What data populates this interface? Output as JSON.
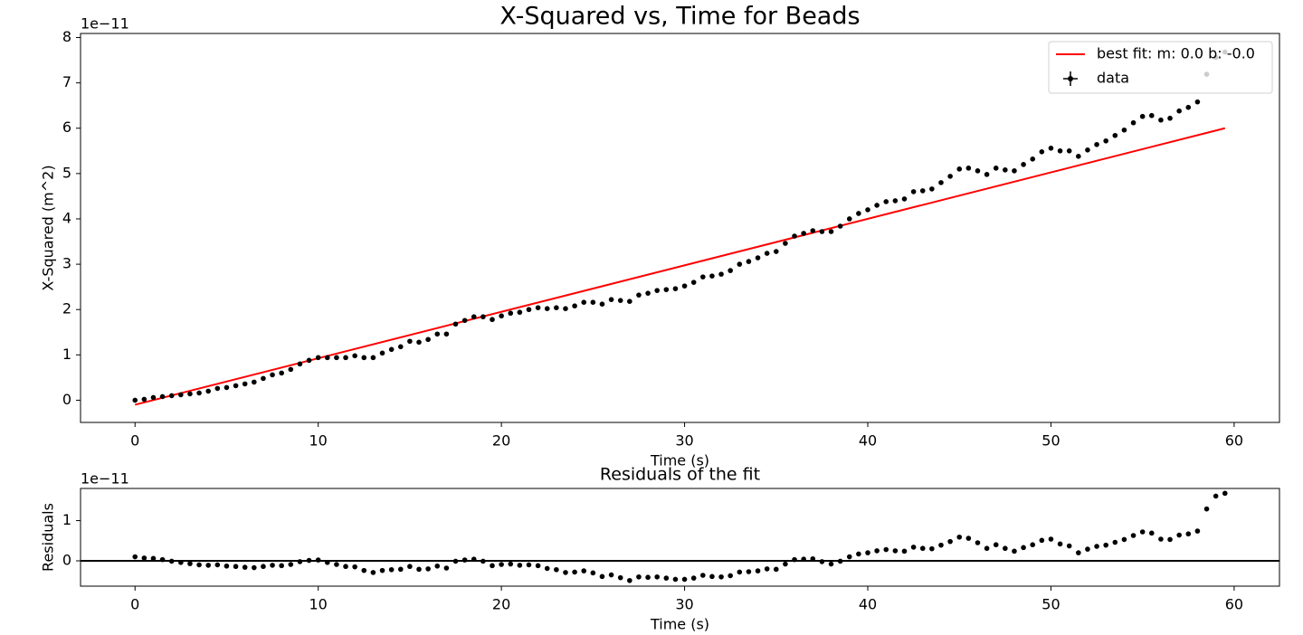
{
  "chart_data": [
    {
      "type": "scatter",
      "title": "X-Squared vs, Time for Beads",
      "xlabel": "Time (s)",
      "ylabel": "X-Squared (m^2)",
      "y_offset_label": "1e−11",
      "xlim": [
        -2.975,
        62.475
      ],
      "xticks": [
        0,
        10,
        20,
        30,
        40,
        50,
        60
      ],
      "ylim": [
        -0.49,
        8.09
      ],
      "yticks": [
        0,
        1,
        2,
        3,
        4,
        5,
        6,
        7,
        8
      ],
      "legend": "upper right",
      "series": [
        {
          "name": "best fit: m: 0.0 b: -0.0",
          "type": "line",
          "color": "#ff0000",
          "x": [
            0,
            59.5
          ],
          "values": [
            -0.1,
            6.0
          ]
        },
        {
          "name": "data",
          "type": "scatter",
          "color": "#000000",
          "x": [
            0,
            0.5,
            1,
            1.5,
            2,
            2.5,
            3,
            3.5,
            4,
            4.5,
            5,
            5.5,
            6,
            6.5,
            7,
            7.5,
            8,
            8.5,
            9,
            9.5,
            10,
            10.5,
            11,
            11.5,
            12,
            12.5,
            13,
            13.5,
            14,
            14.5,
            15,
            15.5,
            16,
            16.5,
            17,
            17.5,
            18,
            18.5,
            19,
            19.5,
            20,
            20.5,
            21,
            21.5,
            22,
            22.5,
            23,
            23.5,
            24,
            24.5,
            25,
            25.5,
            26,
            26.5,
            27,
            27.5,
            28,
            28.5,
            29,
            29.5,
            30,
            30.5,
            31,
            31.5,
            32,
            32.5,
            33,
            33.5,
            34,
            34.5,
            35,
            35.5,
            36,
            36.5,
            37,
            37.5,
            38,
            38.5,
            39,
            39.5,
            40,
            40.5,
            41,
            41.5,
            42,
            42.5,
            43,
            43.5,
            44,
            44.5,
            45,
            45.5,
            46,
            46.5,
            47,
            47.5,
            48,
            48.5,
            49,
            49.5,
            50,
            50.5,
            51,
            51.5,
            52,
            52.5,
            53,
            53.5,
            54,
            54.5,
            55,
            55.5,
            56,
            56.5,
            57,
            57.5,
            58,
            58.5,
            59,
            59.5
          ],
          "values": [
            0,
            0.02,
            0.06,
            0.08,
            0.1,
            0.12,
            0.14,
            0.16,
            0.2,
            0.26,
            0.28,
            0.32,
            0.36,
            0.4,
            0.48,
            0.56,
            0.6,
            0.68,
            0.8,
            0.88,
            0.94,
            0.94,
            0.94,
            0.94,
            0.98,
            0.94,
            0.94,
            1.04,
            1.12,
            1.18,
            1.3,
            1.28,
            1.34,
            1.46,
            1.46,
            1.68,
            1.76,
            1.84,
            1.84,
            1.78,
            1.86,
            1.92,
            1.94,
            2.0,
            2.04,
            2.02,
            2.04,
            2.02,
            2.08,
            2.16,
            2.16,
            2.12,
            2.22,
            2.2,
            2.18,
            2.32,
            2.36,
            2.42,
            2.44,
            2.46,
            2.52,
            2.6,
            2.72,
            2.74,
            2.78,
            2.86,
            3.0,
            3.06,
            3.14,
            3.24,
            3.28,
            3.46,
            3.62,
            3.68,
            3.74,
            3.72,
            3.72,
            3.84,
            4.0,
            4.12,
            4.2,
            4.3,
            4.38,
            4.4,
            4.44,
            4.6,
            4.62,
            4.66,
            4.8,
            4.94,
            5.1,
            5.12,
            5.06,
            4.98,
            5.12,
            5.08,
            5.06,
            5.2,
            5.32,
            5.48,
            5.56,
            5.5,
            5.5,
            5.38,
            5.52,
            5.64,
            5.72,
            5.84,
            5.96,
            6.12,
            6.26,
            6.28,
            6.18,
            6.22,
            6.38,
            6.46,
            6.58,
            7.19,
            7.56,
            7.68
          ]
        }
      ]
    },
    {
      "type": "scatter",
      "title": "Residuals of the fit",
      "xlabel": "Time (s)",
      "ylabel": "Residuals",
      "y_offset_label": "1e−11",
      "xlim": [
        -2.975,
        62.475
      ],
      "xticks": [
        0,
        10,
        20,
        30,
        40,
        50,
        60
      ],
      "ylim": [
        -0.63,
        1.8
      ],
      "yticks": [
        0,
        1
      ],
      "hline": 0,
      "hline_color": "#000000",
      "color": "#000000",
      "x": [
        0,
        0.5,
        1,
        1.5,
        2,
        2.5,
        3,
        3.5,
        4,
        4.5,
        5,
        5.5,
        6,
        6.5,
        7,
        7.5,
        8,
        8.5,
        9,
        9.5,
        10,
        10.5,
        11,
        11.5,
        12,
        12.5,
        13,
        13.5,
        14,
        14.5,
        15,
        15.5,
        16,
        16.5,
        17,
        17.5,
        18,
        18.5,
        19,
        19.5,
        20,
        20.5,
        21,
        21.5,
        22,
        22.5,
        23,
        23.5,
        24,
        24.5,
        25,
        25.5,
        26,
        26.5,
        27,
        27.5,
        28,
        28.5,
        29,
        29.5,
        30,
        30.5,
        31,
        31.5,
        32,
        32.5,
        33,
        33.5,
        34,
        34.5,
        35,
        35.5,
        36,
        36.5,
        37,
        37.5,
        38,
        38.5,
        39,
        39.5,
        40,
        40.5,
        41,
        41.5,
        42,
        42.5,
        43,
        43.5,
        44,
        44.5,
        45,
        45.5,
        46,
        46.5,
        47,
        47.5,
        48,
        48.5,
        49,
        49.5,
        50,
        50.5,
        51,
        51.5,
        52,
        52.5,
        53,
        53.5,
        54,
        54.5,
        55,
        55.5,
        56,
        56.5,
        57,
        57.5,
        58,
        58.5,
        59,
        59.5
      ],
      "values": [
        0.1,
        0.07,
        0.06,
        0.03,
        -0.01,
        -0.04,
        -0.07,
        -0.1,
        -0.11,
        -0.1,
        -0.13,
        -0.14,
        -0.16,
        -0.17,
        -0.14,
        -0.11,
        -0.12,
        -0.09,
        -0.02,
        0.01,
        0.02,
        -0.04,
        -0.09,
        -0.14,
        -0.15,
        -0.24,
        -0.29,
        -0.24,
        -0.22,
        -0.21,
        -0.14,
        -0.21,
        -0.2,
        -0.13,
        -0.18,
        -0.01,
        0.02,
        0.04,
        -0.01,
        -0.12,
        -0.09,
        -0.08,
        -0.11,
        -0.1,
        -0.12,
        -0.19,
        -0.22,
        -0.29,
        -0.28,
        -0.25,
        -0.3,
        -0.39,
        -0.35,
        -0.42,
        -0.49,
        -0.4,
        -0.41,
        -0.4,
        -0.43,
        -0.46,
        -0.46,
        -0.43,
        -0.36,
        -0.39,
        -0.4,
        -0.37,
        -0.28,
        -0.27,
        -0.25,
        -0.2,
        -0.21,
        -0.08,
        0.03,
        0.04,
        0.05,
        -0.02,
        -0.08,
        -0.01,
        0.1,
        0.17,
        0.2,
        0.25,
        0.28,
        0.25,
        0.24,
        0.34,
        0.31,
        0.3,
        0.39,
        0.48,
        0.59,
        0.56,
        0.45,
        0.31,
        0.4,
        0.31,
        0.24,
        0.33,
        0.4,
        0.51,
        0.54,
        0.42,
        0.37,
        0.2,
        0.29,
        0.36,
        0.39,
        0.46,
        0.53,
        0.63,
        0.72,
        0.69,
        0.54,
        0.53,
        0.64,
        0.67,
        0.74,
        1.29,
        1.61,
        1.68
      ]
    }
  ]
}
